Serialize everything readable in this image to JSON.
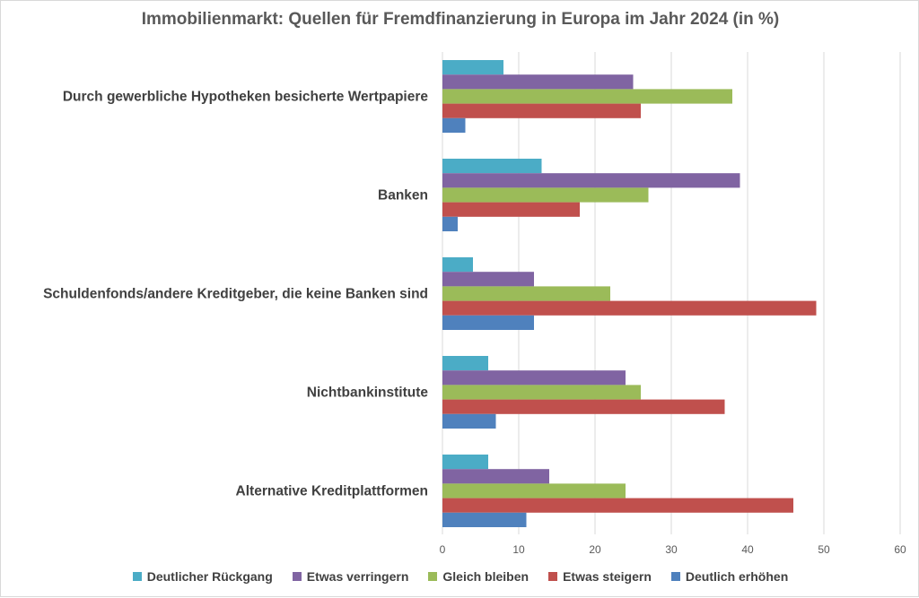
{
  "chart_data": {
    "type": "bar",
    "orientation": "horizontal",
    "title": "Immobilienmarkt: Quellen für Fremdfinanzierung in Europa im Jahr 2024 (in %)",
    "xlabel": "",
    "ylabel": "",
    "xlim": [
      0,
      60
    ],
    "xticks": [
      "0",
      "10",
      "20",
      "30",
      "40",
      "50",
      "60"
    ],
    "grid": true,
    "legend_position": "bottom",
    "categories": [
      "Durch gewerbliche Hypotheken besicherte Wertpapiere",
      "Banken",
      "Schuldenfonds/andere Kreditgeber, die keine Banken sind",
      "Nichtbankinstitute",
      "Alternative Kreditplattformen"
    ],
    "series": [
      {
        "name": "Deutlicher Rückgang",
        "color": "#4bacc6",
        "values": [
          8,
          13,
          4,
          6,
          6
        ]
      },
      {
        "name": "Etwas verringern",
        "color": "#8064a2",
        "values": [
          25,
          39,
          12,
          24,
          14
        ]
      },
      {
        "name": "Gleich bleiben",
        "color": "#9bbb59",
        "values": [
          38,
          27,
          22,
          26,
          24
        ]
      },
      {
        "name": "Etwas steigern",
        "color": "#c0504d",
        "values": [
          26,
          18,
          49,
          37,
          46
        ]
      },
      {
        "name": "Deutlich erhöhen",
        "color": "#4f81bd",
        "values": [
          3,
          2,
          12,
          7,
          11
        ]
      }
    ]
  }
}
